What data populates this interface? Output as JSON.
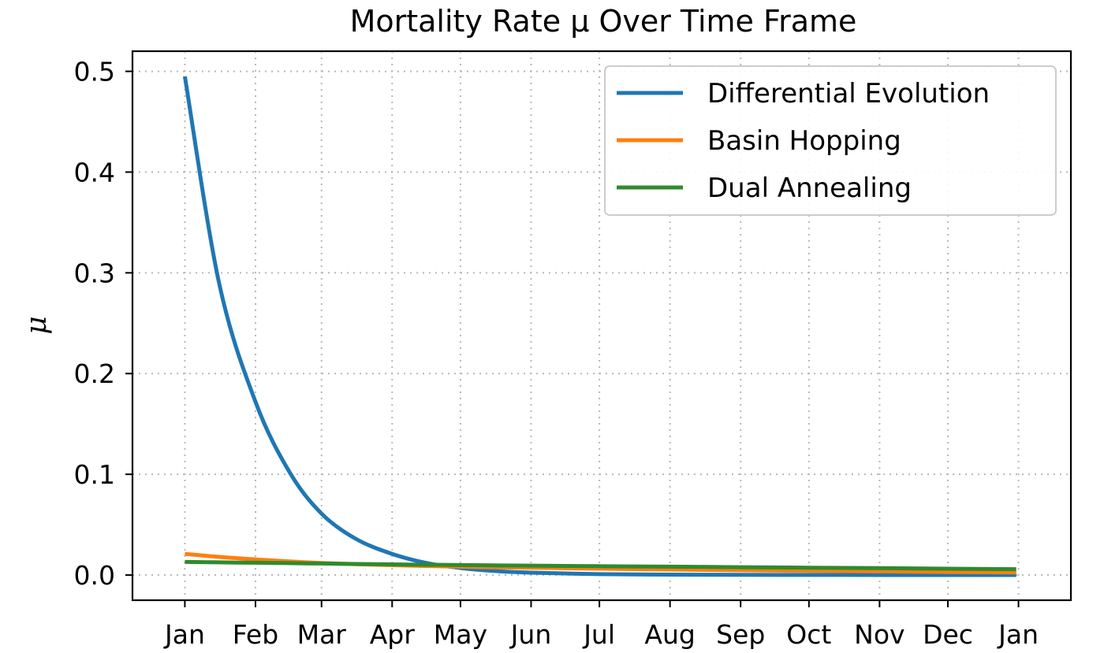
{
  "chart_data": {
    "type": "line",
    "title": "Mortality Rate μ Over Time Frame",
    "xlabel": "",
    "ylabel": "μ",
    "x_tick_labels": [
      "Jan",
      "Feb",
      "Mar",
      "Apr",
      "May",
      "Jun",
      "Jul",
      "Aug",
      "Sep",
      "Oct",
      "Nov",
      "Dec",
      "Jan"
    ],
    "x_ticks": [
      "2020-01-01",
      "2020-02-01",
      "2020-03-01",
      "2020-04-01",
      "2020-05-01",
      "2020-06-01",
      "2020-07-01",
      "2020-08-01",
      "2020-09-01",
      "2020-10-01",
      "2020-11-01",
      "2020-12-01",
      "2021-01-01"
    ],
    "xlim": [
      "2019-12-09",
      "2021-01-24"
    ],
    "ylim": [
      -0.025,
      0.52
    ],
    "y_ticks": [
      0.0,
      0.1,
      0.2,
      0.3,
      0.4,
      0.5
    ],
    "y_tick_labels": [
      "0.0",
      "0.1",
      "0.2",
      "0.3",
      "0.4",
      "0.5"
    ],
    "grid": true,
    "legend_position": "top-right",
    "x": [
      "2020-01-01",
      "2020-01-16",
      "2020-02-01",
      "2020-02-16",
      "2020-03-01",
      "2020-03-16",
      "2020-04-01",
      "2020-04-16",
      "2020-05-01",
      "2020-05-16",
      "2020-06-01",
      "2020-07-01",
      "2020-08-01",
      "2020-09-01",
      "2020-10-01",
      "2020-11-01",
      "2020-12-01",
      "2020-12-31"
    ],
    "series": [
      {
        "name": "Differential Evolution",
        "color": "#1f77b4",
        "values": [
          0.495,
          0.29,
          0.172,
          0.102,
          0.061,
          0.036,
          0.021,
          0.012,
          0.007,
          0.004,
          0.0024,
          0.0009,
          0.0004,
          0.0002,
          0.0001,
          5e-05,
          2e-05,
          1e-05
        ]
      },
      {
        "name": "Basin Hopping",
        "color": "#ff7f0e",
        "values": [
          0.021,
          0.018,
          0.0155,
          0.0135,
          0.012,
          0.0108,
          0.0098,
          0.009,
          0.0083,
          0.0077,
          0.0072,
          0.0063,
          0.0055,
          0.0048,
          0.0042,
          0.0036,
          0.0031,
          0.0026
        ]
      },
      {
        "name": "Dual Annealing",
        "color": "#2e8b2e",
        "values": [
          0.013,
          0.0126,
          0.0122,
          0.0118,
          0.0114,
          0.011,
          0.0106,
          0.0102,
          0.0099,
          0.0096,
          0.0093,
          0.0088,
          0.0083,
          0.0078,
          0.0073,
          0.0068,
          0.0063,
          0.0058
        ]
      }
    ]
  }
}
